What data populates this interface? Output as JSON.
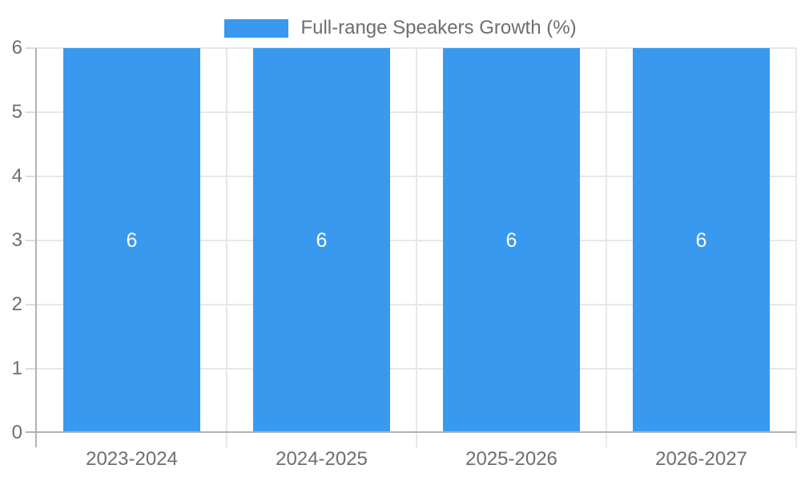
{
  "legend": {
    "label": "Full-range Speakers Growth (%)"
  },
  "colors": {
    "bar": "#3999ee",
    "bar_value_text": "#ffffff",
    "axis_text": "#6e6e6e",
    "grid_line": "#e7e7e7",
    "tick_line": "#dcdcdc",
    "axis_line": "#b3b3b3",
    "background": "#ffffff"
  },
  "chart_data": {
    "type": "bar",
    "title": "Full-range Speakers Growth (%)",
    "categories": [
      "2023-2024",
      "2024-2025",
      "2025-2026",
      "2026-2027"
    ],
    "series": [
      {
        "name": "Full-range Speakers Growth (%)",
        "values": [
          6,
          6,
          6,
          6
        ]
      }
    ],
    "values": [
      6,
      6,
      6,
      6
    ],
    "value_labels": [
      "6",
      "6",
      "6",
      "6"
    ],
    "xlabel": "",
    "ylabel": "",
    "ylim": [
      0,
      6
    ],
    "yticks": [
      0,
      1,
      2,
      3,
      4,
      5,
      6
    ],
    "grid": true,
    "legend_position": "top",
    "value_labels_inside_bars": true
  }
}
